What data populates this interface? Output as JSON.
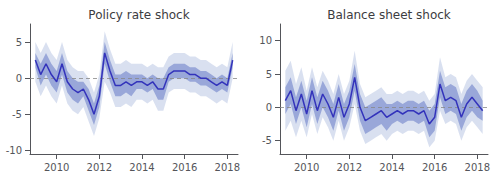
{
  "chart_data": [
    {
      "type": "line",
      "title": "Policy rate shock",
      "x": [
        2009.0,
        2009.25,
        2009.5,
        2009.75,
        2010.0,
        2010.25,
        2010.5,
        2010.75,
        2011.0,
        2011.25,
        2011.5,
        2011.75,
        2012.0,
        2012.25,
        2012.5,
        2012.75,
        2013.0,
        2013.25,
        2013.5,
        2013.75,
        2014.0,
        2014.25,
        2014.5,
        2014.75,
        2015.0,
        2015.25,
        2015.5,
        2015.75,
        2016.0,
        2016.25,
        2016.5,
        2016.75,
        2017.0,
        2017.25,
        2017.5,
        2017.75,
        2018.0,
        2018.25
      ],
      "xlim": [
        2008.75,
        2018.5
      ],
      "xticks": [
        2010,
        2012,
        2014,
        2016,
        2018
      ],
      "ylim": [
        -10.5,
        7.5
      ],
      "yticks": [
        -10,
        -5,
        0,
        5
      ],
      "grid": false,
      "hline": 0,
      "series": [
        {
          "color": "#3333bb",
          "values": [
            2.5,
            0.5,
            2.0,
            0.5,
            -0.5,
            2.0,
            -0.5,
            -1.5,
            -2.0,
            -1.5,
            -3.0,
            -5.0,
            -2.5,
            3.5,
            1.0,
            -1.0,
            -1.0,
            -0.5,
            -1.0,
            -0.5,
            -0.5,
            -1.0,
            -0.5,
            -1.5,
            -1.5,
            0.5,
            1.0,
            1.0,
            1.0,
            0.5,
            0.5,
            0.0,
            0.0,
            -0.5,
            -1.0,
            -0.5,
            -1.0,
            2.5
          ]
        }
      ],
      "bands": [
        {
          "color": "#aabbdd",
          "upper": [
            5.0,
            3.5,
            5.0,
            3.5,
            2.5,
            5.0,
            2.5,
            1.5,
            1.0,
            1.0,
            0.0,
            -2.0,
            0.5,
            6.5,
            4.0,
            2.0,
            2.0,
            2.5,
            2.0,
            2.0,
            2.0,
            1.5,
            2.0,
            1.5,
            1.5,
            3.0,
            3.5,
            3.5,
            3.5,
            3.0,
            3.0,
            2.5,
            2.5,
            2.0,
            1.5,
            2.0,
            1.5,
            5.0
          ],
          "lower": [
            -0.5,
            -2.5,
            -1.0,
            -2.5,
            -3.5,
            -1.0,
            -3.5,
            -4.5,
            -5.0,
            -4.0,
            -6.0,
            -8.0,
            -5.5,
            -0.5,
            -2.0,
            -4.0,
            -4.0,
            -3.5,
            -4.0,
            -3.0,
            -3.0,
            -3.5,
            -3.0,
            -4.5,
            -4.5,
            -2.0,
            -1.5,
            -1.5,
            -1.5,
            -2.0,
            -2.0,
            -2.5,
            -2.5,
            -3.0,
            -3.5,
            -3.0,
            -3.5,
            0.0
          ]
        },
        {
          "color": "#7788cc",
          "upper": [
            3.5,
            2.0,
            3.5,
            2.0,
            1.0,
            3.5,
            1.0,
            0.0,
            -0.5,
            -0.5,
            -1.5,
            -3.5,
            -1.0,
            5.0,
            2.5,
            0.5,
            0.5,
            1.0,
            0.5,
            0.5,
            0.5,
            0.0,
            0.5,
            0.0,
            0.0,
            1.5,
            2.0,
            2.0,
            2.0,
            1.5,
            1.5,
            1.0,
            1.0,
            0.5,
            0.0,
            0.5,
            0.0,
            3.5
          ],
          "lower": [
            1.5,
            -1.0,
            0.5,
            -1.0,
            -2.0,
            0.5,
            -2.0,
            -3.0,
            -3.5,
            -2.5,
            -4.5,
            -6.5,
            -4.0,
            2.0,
            -0.5,
            -2.5,
            -2.5,
            -2.0,
            -2.5,
            -1.5,
            -1.5,
            -2.0,
            -1.5,
            -3.0,
            -3.0,
            -0.5,
            0.0,
            0.0,
            0.0,
            -0.5,
            -0.5,
            -1.0,
            -1.0,
            -1.5,
            -2.0,
            -1.5,
            -2.0,
            1.5
          ]
        }
      ]
    },
    {
      "type": "line",
      "title": "Balance sheet shock",
      "x": [
        2009.0,
        2009.25,
        2009.5,
        2009.75,
        2010.0,
        2010.25,
        2010.5,
        2010.75,
        2011.0,
        2011.25,
        2011.5,
        2011.75,
        2012.0,
        2012.25,
        2012.5,
        2012.75,
        2013.0,
        2013.25,
        2013.5,
        2013.75,
        2014.0,
        2014.25,
        2014.5,
        2014.75,
        2015.0,
        2015.25,
        2015.5,
        2015.75,
        2016.0,
        2016.25,
        2016.5,
        2016.75,
        2017.0,
        2017.25,
        2017.5,
        2017.75,
        2018.0,
        2018.25
      ],
      "xlim": [
        2008.75,
        2018.5
      ],
      "xticks": [
        2010,
        2012,
        2014,
        2016,
        2018
      ],
      "ylim": [
        -7.0,
        12.5
      ],
      "yticks": [
        -5,
        0,
        5,
        10
      ],
      "grid": false,
      "hline": 0,
      "series": [
        {
          "color": "#3333bb",
          "values": [
            1.0,
            2.5,
            -0.5,
            2.0,
            -1.0,
            2.5,
            -0.5,
            2.0,
            0.5,
            -1.5,
            1.5,
            -1.5,
            0.5,
            4.5,
            0.0,
            -2.0,
            -1.5,
            -1.0,
            -0.5,
            -1.5,
            -1.0,
            -0.5,
            -1.0,
            -0.5,
            -0.5,
            -1.0,
            -0.5,
            -2.5,
            -1.5,
            3.5,
            1.0,
            1.5,
            1.0,
            -1.5,
            0.5,
            1.5,
            0.5,
            -0.5
          ]
        }
      ],
      "bands": [
        {
          "color": "#aabbdd",
          "upper": [
            5.5,
            7.0,
            3.5,
            6.0,
            2.5,
            6.0,
            3.0,
            5.5,
            4.0,
            2.0,
            5.0,
            2.0,
            4.0,
            8.5,
            3.5,
            1.5,
            2.0,
            2.5,
            3.0,
            2.0,
            2.0,
            2.5,
            2.0,
            2.5,
            2.5,
            2.0,
            2.5,
            1.0,
            2.0,
            7.5,
            4.5,
            5.0,
            4.5,
            2.0,
            4.0,
            5.0,
            4.0,
            3.0
          ],
          "lower": [
            -3.5,
            -2.0,
            -4.5,
            -2.0,
            -4.5,
            -1.0,
            -4.0,
            -1.5,
            -3.0,
            -5.0,
            -2.0,
            -5.0,
            -3.0,
            0.5,
            -3.5,
            -5.5,
            -5.0,
            -4.5,
            -4.0,
            -5.0,
            -4.0,
            -3.5,
            -4.0,
            -3.5,
            -3.5,
            -4.0,
            -3.5,
            -6.0,
            -5.0,
            -0.5,
            -2.5,
            -2.0,
            -2.5,
            -5.0,
            -3.0,
            -2.0,
            -3.0,
            -4.0
          ]
        },
        {
          "color": "#7788cc",
          "upper": [
            3.0,
            4.5,
            1.5,
            4.0,
            1.0,
            4.5,
            1.5,
            4.0,
            2.5,
            0.5,
            3.5,
            0.5,
            2.5,
            6.5,
            2.0,
            0.0,
            0.5,
            1.0,
            1.5,
            0.5,
            0.5,
            1.0,
            0.5,
            1.0,
            1.0,
            0.5,
            1.0,
            -0.5,
            0.5,
            5.5,
            3.0,
            3.5,
            3.0,
            0.5,
            2.5,
            3.5,
            2.5,
            1.0
          ],
          "lower": [
            -1.0,
            0.5,
            -2.5,
            0.0,
            -3.0,
            0.5,
            -2.5,
            0.0,
            -1.5,
            -3.5,
            -0.5,
            -3.5,
            -1.5,
            2.5,
            -2.0,
            -4.0,
            -3.5,
            -3.0,
            -2.5,
            -3.5,
            -2.5,
            -2.0,
            -2.5,
            -2.0,
            -2.0,
            -2.5,
            -2.0,
            -4.5,
            -3.5,
            1.5,
            -1.0,
            -0.5,
            -1.0,
            -3.5,
            -1.5,
            -0.5,
            -1.5,
            -2.0
          ]
        }
      ]
    }
  ]
}
